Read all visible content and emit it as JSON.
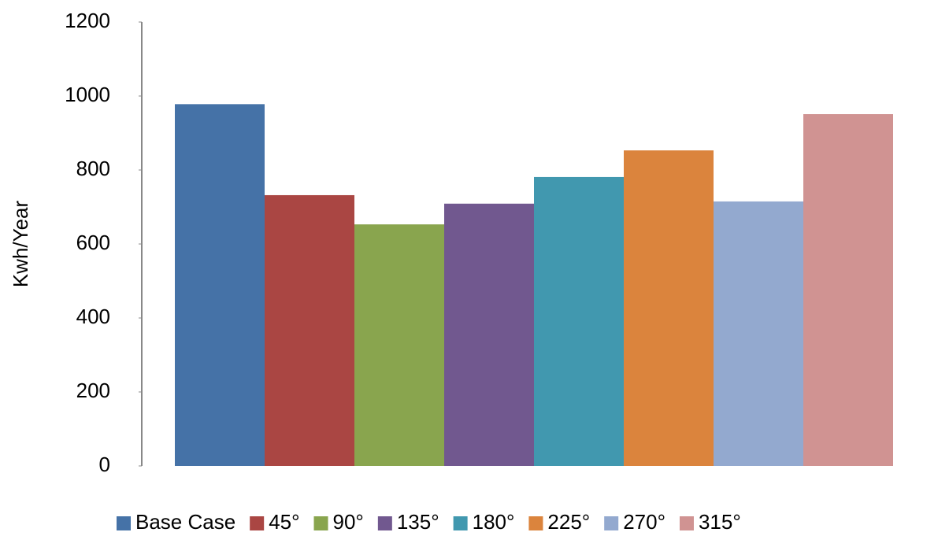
{
  "chart_data": {
    "type": "bar",
    "y_label": "Kwh/Year",
    "series": [
      {
        "name": "Base Case",
        "color": "#4572a7",
        "values": [
          978
        ]
      },
      {
        "name": "45°",
        "color": "#aa4643",
        "values": [
          732
        ]
      },
      {
        "name": "90°",
        "color": "#89a54e",
        "values": [
          653
        ]
      },
      {
        "name": "135°",
        "color": "#71588f",
        "values": [
          709
        ]
      },
      {
        "name": "180°",
        "color": "#4198af",
        "values": [
          781
        ]
      },
      {
        "name": "225°",
        "color": "#db843d",
        "values": [
          853
        ]
      },
      {
        "name": "270°",
        "color": "#93a9cf",
        "values": [
          715
        ]
      },
      {
        "name": "315°",
        "color": "#d09392",
        "values": [
          951
        ]
      }
    ],
    "ylim": [
      0,
      1200
    ],
    "yticks": [
      0,
      200,
      400,
      600,
      800,
      1000,
      1200
    ],
    "grid": false
  }
}
